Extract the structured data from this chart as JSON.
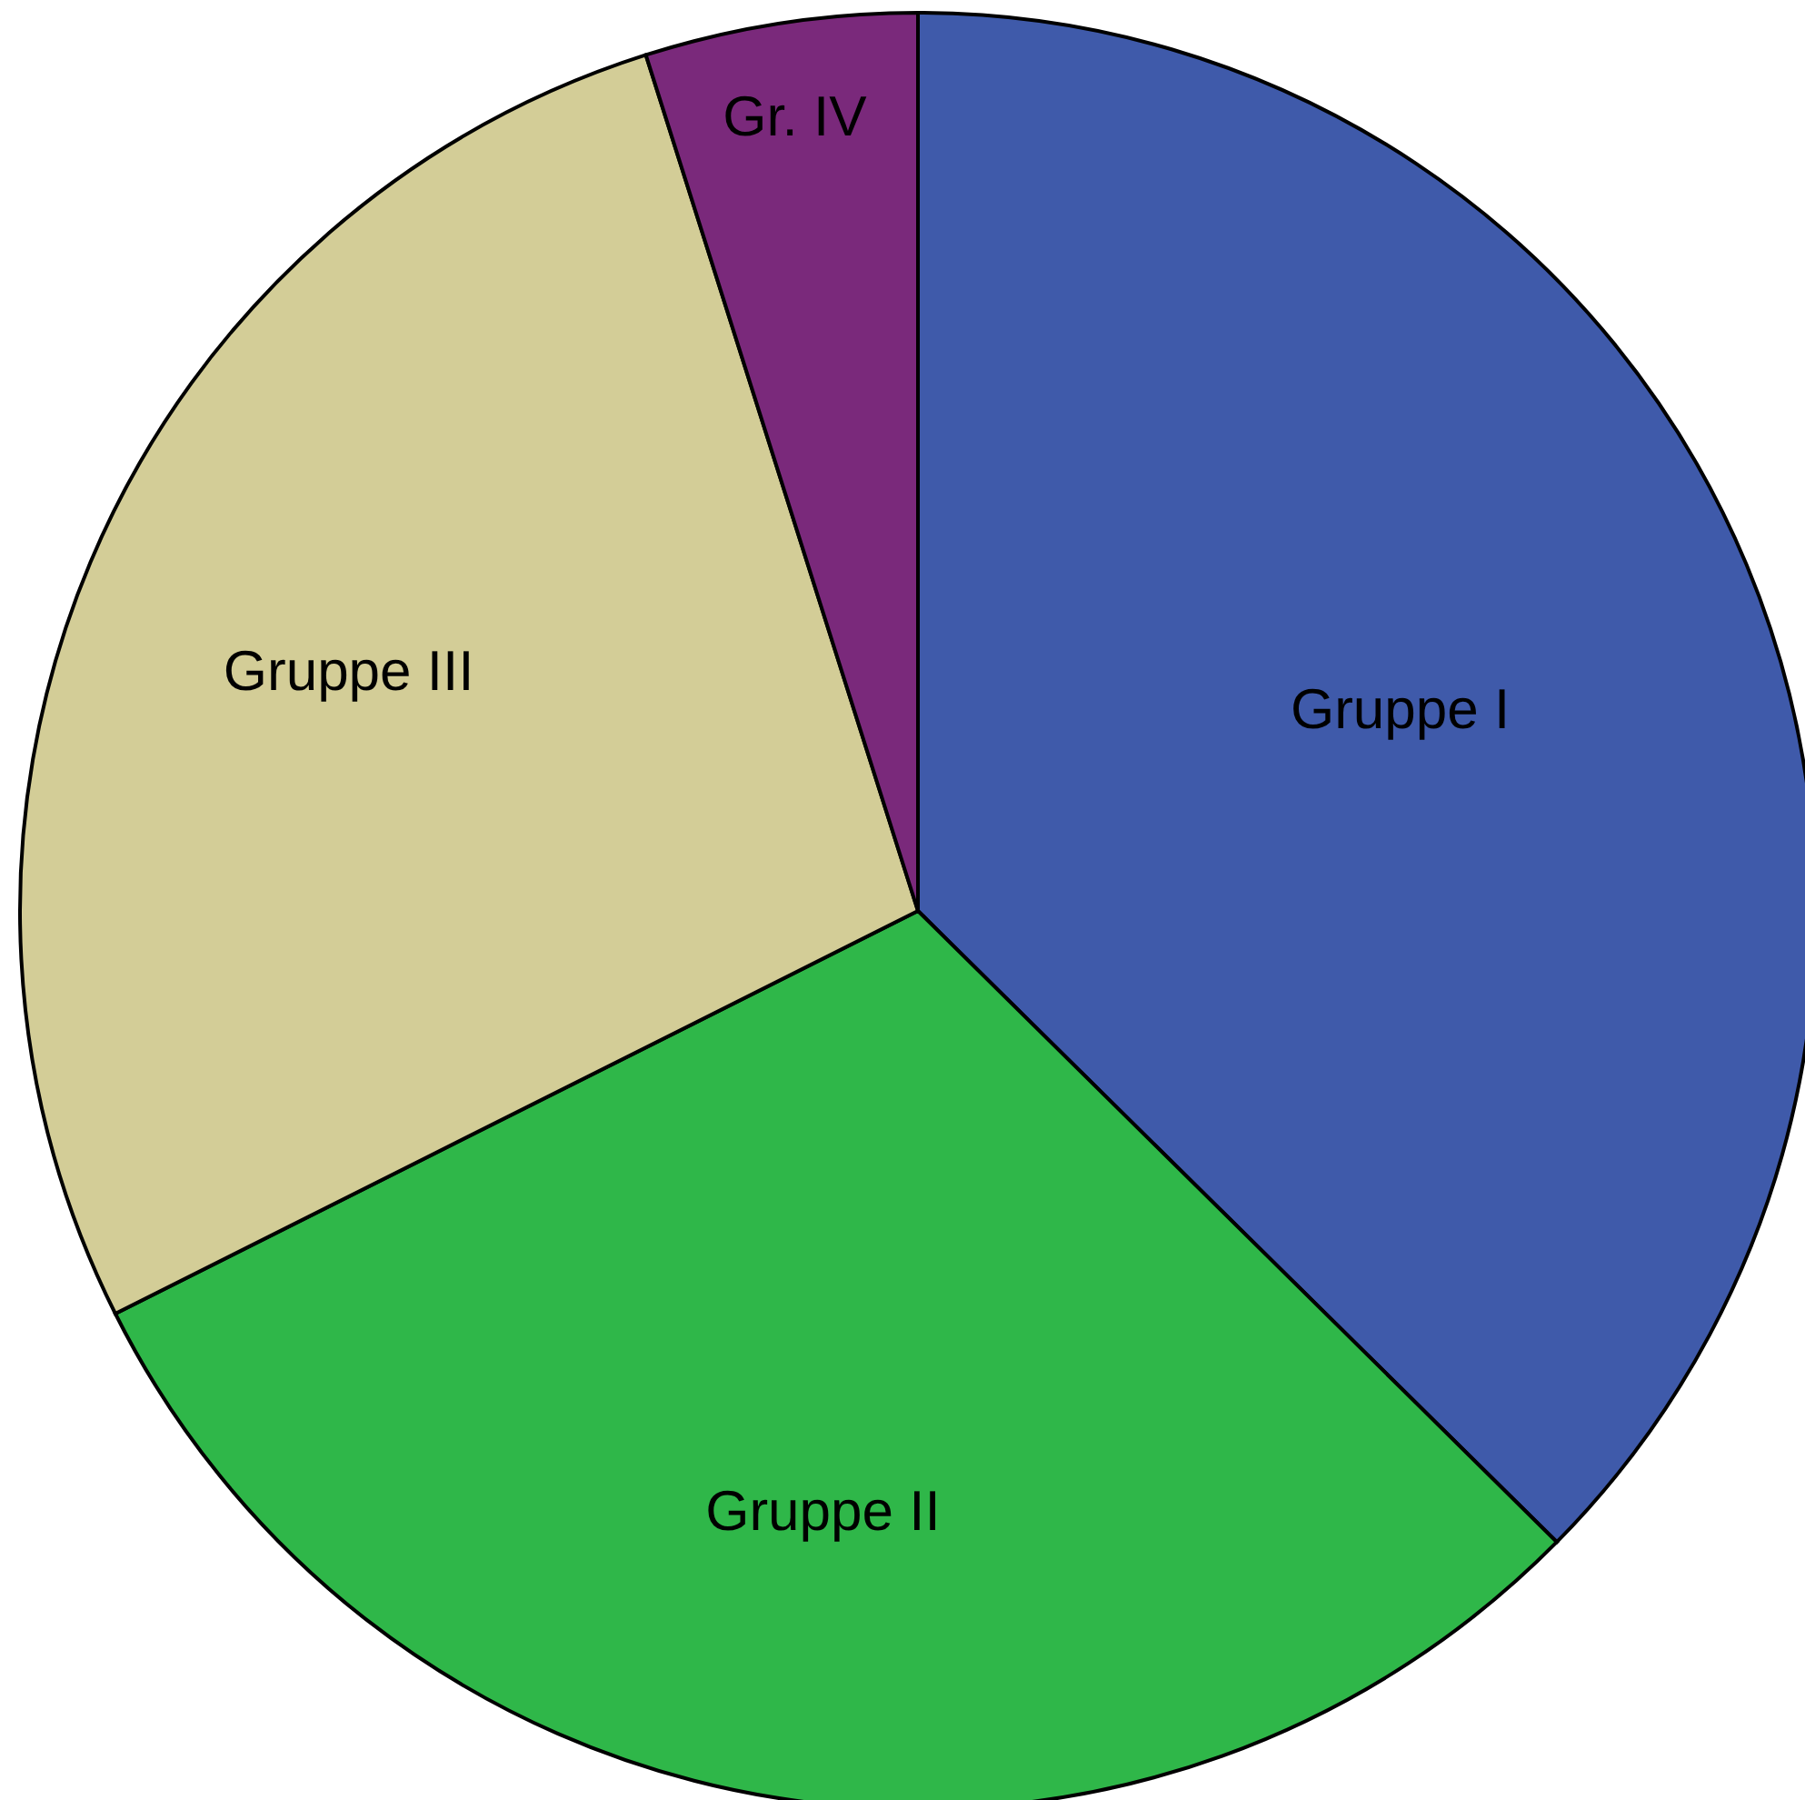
{
  "chart_data": {
    "type": "pie",
    "categories": [
      "Gruppe I",
      "Gruppe II",
      "Gruppe III",
      "Gr. IV"
    ],
    "values": [
      37.4,
      30.2,
      27.5,
      4.9
    ],
    "colors": [
      "#3f5aaa",
      "#2fb749",
      "#d3cd97",
      "#7a297b"
    ]
  }
}
